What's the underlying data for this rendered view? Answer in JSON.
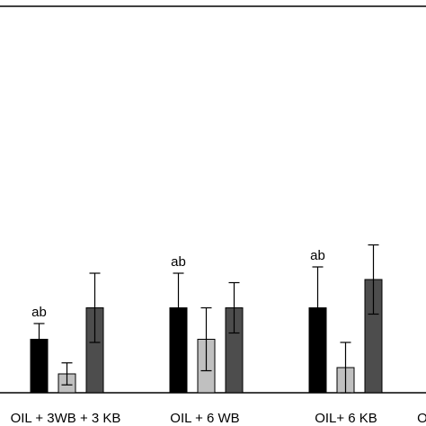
{
  "chart_data": {
    "type": "bar",
    "title": "",
    "xlabel": "",
    "ylabel": "",
    "ylim": [
      0,
      100
    ],
    "grid": false,
    "categories": [
      "OIL + 3WB + 3 KB",
      "OIL + 6 WB",
      "OIL+ 6 KB",
      "O"
    ],
    "series": [
      {
        "color": "#000000",
        "values": [
          17,
          27,
          27,
          null
        ],
        "errors": [
          5,
          11,
          13,
          null
        ]
      },
      {
        "color": "#c0c0c0",
        "values": [
          6,
          17,
          8,
          null
        ],
        "errors": [
          3.5,
          10,
          8,
          null
        ]
      },
      {
        "color": "#4d4d4d",
        "values": [
          27,
          27,
          36,
          null
        ],
        "errors": [
          11,
          8,
          11,
          null
        ]
      }
    ],
    "annotations": [
      {
        "category": 0,
        "series": 0,
        "text": "ab"
      },
      {
        "category": 1,
        "series": 0,
        "text": "ab"
      },
      {
        "category": 2,
        "series": 0,
        "text": "ab"
      }
    ]
  }
}
